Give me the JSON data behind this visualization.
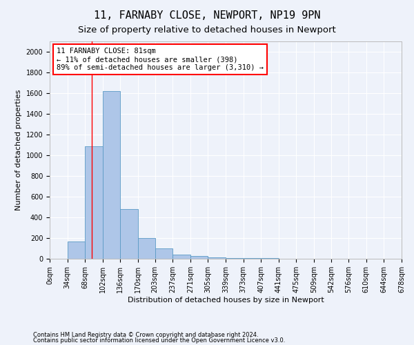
{
  "title": "11, FARNABY CLOSE, NEWPORT, NP19 9PN",
  "subtitle": "Size of property relative to detached houses in Newport",
  "xlabel": "Distribution of detached houses by size in Newport",
  "ylabel": "Number of detached properties",
  "annotation_line1": "11 FARNABY CLOSE: 81sqm",
  "annotation_line2": "← 11% of detached houses are smaller (398)",
  "annotation_line3": "89% of semi-detached houses are larger (3,310) →",
  "property_size": 81,
  "footnote1": "Contains HM Land Registry data © Crown copyright and database right 2024.",
  "footnote2": "Contains public sector information licensed under the Open Government Licence v3.0.",
  "bin_edges": [
    0,
    34,
    68,
    102,
    136,
    170,
    203,
    237,
    271,
    305,
    339,
    373,
    407,
    441,
    475,
    509,
    542,
    576,
    610,
    644,
    678
  ],
  "bin_labels": [
    "0sqm",
    "34sqm",
    "68sqm",
    "102sqm",
    "136sqm",
    "170sqm",
    "203sqm",
    "237sqm",
    "271sqm",
    "305sqm",
    "339sqm",
    "373sqm",
    "407sqm",
    "441sqm",
    "475sqm",
    "509sqm",
    "542sqm",
    "576sqm",
    "610sqm",
    "644sqm",
    "678sqm"
  ],
  "bar_heights": [
    0,
    170,
    1085,
    1620,
    480,
    200,
    100,
    40,
    25,
    15,
    5,
    5,
    5,
    0,
    0,
    0,
    0,
    0,
    0,
    0
  ],
  "bar_color": "#aec6e8",
  "bar_edge_color": "#5a9ac5",
  "red_line_x": 81,
  "ylim": [
    0,
    2100
  ],
  "yticks": [
    0,
    200,
    400,
    600,
    800,
    1000,
    1200,
    1400,
    1600,
    1800,
    2000
  ],
  "bg_color": "#eef2fa",
  "grid_color": "#ffffff",
  "title_fontsize": 11,
  "subtitle_fontsize": 9.5,
  "axis_label_fontsize": 8,
  "tick_fontsize": 7,
  "annotation_fontsize": 7.5
}
